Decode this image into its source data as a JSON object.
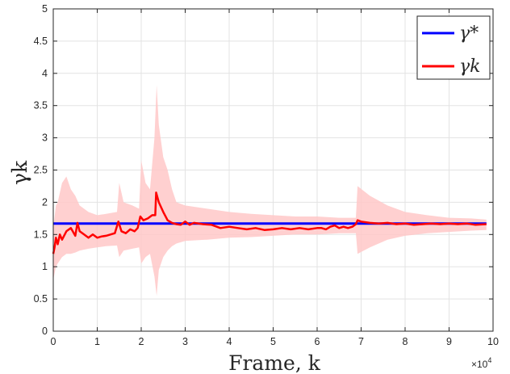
{
  "chart_data": {
    "type": "line",
    "xlabel": "Frame, k",
    "ylabel": "γk",
    "x_multiplier": "×10^4",
    "x_multiplier_base": "×10",
    "x_multiplier_exp": "4",
    "xlim": [
      0,
      100000
    ],
    "ylim": [
      0,
      5
    ],
    "x_ticks": [
      0,
      10000,
      20000,
      30000,
      40000,
      50000,
      60000,
      70000,
      80000,
      90000,
      100000
    ],
    "x_tick_labels": [
      "0",
      "1",
      "2",
      "3",
      "4",
      "5",
      "6",
      "7",
      "8",
      "9",
      "10"
    ],
    "y_ticks": [
      0,
      0.5,
      1,
      1.5,
      2,
      2.5,
      3,
      3.5,
      4,
      4.5,
      5
    ],
    "y_tick_labels": [
      "0",
      "0.5",
      "1",
      "1.5",
      "2",
      "2.5",
      "3",
      "3.5",
      "4",
      "4.5",
      "5"
    ],
    "grid": true,
    "legend_position": "top-right",
    "series": [
      {
        "name": "γ*",
        "color": "#0000ff",
        "x": [
          0,
          98500
        ],
        "y": [
          1.67,
          1.67
        ]
      },
      {
        "name": "γk",
        "color": "#ff0000",
        "x": [
          0,
          300,
          600,
          1000,
          1500,
          2000,
          3000,
          4000,
          5000,
          5500,
          6000,
          7000,
          8000,
          9000,
          10000,
          11000,
          12000,
          13000,
          14000,
          14800,
          15500,
          16500,
          17500,
          18500,
          19200,
          19800,
          20500,
          21500,
          22500,
          23200,
          23400,
          24000,
          25000,
          26000,
          27000,
          28000,
          29000,
          30000,
          31000,
          32000,
          34000,
          36000,
          38000,
          40000,
          42000,
          44000,
          46000,
          48000,
          50000,
          52000,
          54000,
          56000,
          58000,
          60000,
          61000,
          62000,
          63000,
          64000,
          65000,
          66000,
          67000,
          68000,
          68800,
          69200,
          70000,
          72000,
          74000,
          76000,
          78000,
          80000,
          82000,
          84000,
          86000,
          88000,
          90000,
          92000,
          94000,
          96000,
          98500
        ],
        "y": [
          1.2,
          1.3,
          1.45,
          1.35,
          1.5,
          1.42,
          1.55,
          1.6,
          1.48,
          1.68,
          1.55,
          1.5,
          1.45,
          1.5,
          1.45,
          1.47,
          1.48,
          1.5,
          1.52,
          1.7,
          1.55,
          1.52,
          1.58,
          1.55,
          1.6,
          1.78,
          1.72,
          1.75,
          1.8,
          1.8,
          2.15,
          2.0,
          1.85,
          1.72,
          1.68,
          1.66,
          1.65,
          1.7,
          1.65,
          1.68,
          1.66,
          1.65,
          1.6,
          1.62,
          1.6,
          1.58,
          1.6,
          1.57,
          1.58,
          1.6,
          1.58,
          1.6,
          1.58,
          1.6,
          1.6,
          1.58,
          1.62,
          1.64,
          1.6,
          1.62,
          1.6,
          1.62,
          1.66,
          1.72,
          1.7,
          1.68,
          1.67,
          1.68,
          1.66,
          1.67,
          1.65,
          1.66,
          1.67,
          1.66,
          1.67,
          1.66,
          1.67,
          1.65,
          1.66
        ]
      },
      {
        "name": "γk band",
        "color": "#ffc8c8",
        "x": [
          0,
          600,
          1000,
          2000,
          3000,
          4000,
          5000,
          6000,
          8000,
          10000,
          12000,
          14500,
          15000,
          16000,
          18000,
          19500,
          20000,
          21000,
          22000,
          23000,
          23500,
          24000,
          25000,
          26000,
          27000,
          28000,
          30000,
          35000,
          40000,
          45000,
          50000,
          55000,
          60000,
          65000,
          68800,
          69200,
          72000,
          76000,
          80000,
          85000,
          90000,
          95000,
          98500
        ],
        "upper": [
          1.6,
          1.95,
          2.0,
          2.3,
          2.4,
          2.2,
          2.1,
          1.95,
          1.85,
          1.8,
          1.82,
          1.85,
          2.3,
          2.0,
          1.95,
          1.9,
          2.65,
          2.3,
          2.2,
          3.0,
          3.82,
          3.2,
          2.7,
          2.5,
          2.2,
          2.0,
          1.95,
          1.9,
          1.85,
          1.82,
          1.8,
          1.78,
          1.78,
          1.76,
          1.76,
          2.25,
          2.1,
          1.95,
          1.85,
          1.8,
          1.76,
          1.75,
          1.73
        ],
        "lower": [
          0.8,
          1.0,
          1.05,
          1.15,
          1.2,
          1.2,
          1.22,
          1.25,
          1.28,
          1.3,
          1.32,
          1.33,
          1.15,
          1.25,
          1.28,
          1.3,
          1.05,
          1.15,
          1.2,
          0.85,
          0.55,
          0.95,
          1.15,
          1.25,
          1.32,
          1.36,
          1.4,
          1.42,
          1.45,
          1.46,
          1.48,
          1.5,
          1.5,
          1.52,
          1.52,
          1.2,
          1.3,
          1.42,
          1.48,
          1.52,
          1.54,
          1.56,
          1.57
        ]
      }
    ]
  }
}
